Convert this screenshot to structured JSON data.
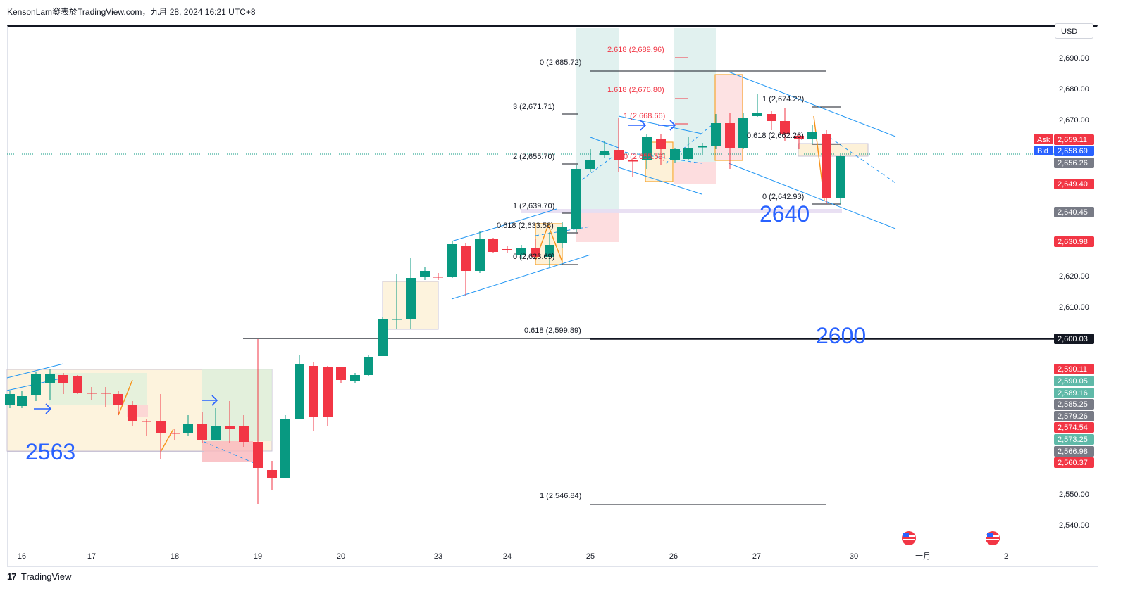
{
  "header": {
    "caption": "KensonLam發表於TradingView.com，九月 28, 2024 16:21 UTC+8"
  },
  "currency": "USD",
  "footer": {
    "logo_text": "TradingView"
  },
  "price_axis": {
    "ticks": [
      "2,690.00",
      "2,680.00",
      "2,670.00",
      "2,620.00",
      "2,610.00",
      "2,550.00",
      "2,540.00"
    ],
    "labels": [
      {
        "text": "Ask",
        "kind": "tag",
        "color": "#f23645"
      },
      {
        "text": "2,659.11",
        "color": "#f23645"
      },
      {
        "text": "Bid",
        "kind": "tag",
        "color": "#2962ff"
      },
      {
        "text": "2,658.69",
        "color": "#2962ff"
      },
      {
        "text": "2,656.26",
        "color": "#787b86"
      },
      {
        "text": "2,649.40",
        "color": "#f23645"
      },
      {
        "text": "2,640.45",
        "color": "#787b86"
      },
      {
        "text": "2,630.98",
        "color": "#f23645"
      },
      {
        "text": "2,600.03",
        "color": "#131722"
      },
      {
        "text": "2,590.11",
        "color": "#f23645"
      },
      {
        "text": "2,590.05",
        "color": "#5fb9a8"
      },
      {
        "text": "2,589.16",
        "color": "#5fb9a8"
      },
      {
        "text": "2,585.25",
        "color": "#787b86"
      },
      {
        "text": "2,579.26",
        "color": "#787b86"
      },
      {
        "text": "2,574.54",
        "color": "#f23645"
      },
      {
        "text": "2,573.25",
        "color": "#5fb9a8"
      },
      {
        "text": "2,566.98",
        "color": "#787b86"
      },
      {
        "text": "2,560.37",
        "color": "#f23645"
      }
    ]
  },
  "time_axis": {
    "ticks": [
      "16",
      "17",
      "18",
      "19",
      "20",
      "23",
      "24",
      "25",
      "26",
      "27",
      "30",
      "十月",
      "2"
    ]
  },
  "annotations": {
    "fib_labels": [
      {
        "text": "2.618 (2,689.96)",
        "color": "#f23645"
      },
      {
        "text": "0 (2,685.72)",
        "color": "#131722"
      },
      {
        "text": "1.618 (2,676.80)",
        "color": "#f23645"
      },
      {
        "text": "3 (2,671.71)",
        "color": "#131722"
      },
      {
        "text": "1 (2,668.66)",
        "color": "#f23645"
      },
      {
        "text": "1 (2,674.22)",
        "color": "#131722"
      },
      {
        "text": "0.618 (2,662.26)",
        "color": "#131722"
      },
      {
        "text": "2 (2,655.70)",
        "color": "#131722"
      },
      {
        "text": "0 (2,655.59)",
        "color": "#f23645"
      },
      {
        "text": "0 (2,642.93)",
        "color": "#131722"
      },
      {
        "text": "1 (2,639.70)",
        "color": "#131722"
      },
      {
        "text": "0.618 (2,633.58)",
        "color": "#131722"
      },
      {
        "text": "0 (2,623.69)",
        "color": "#131722"
      },
      {
        "text": "0.618 (2,599.89)",
        "color": "#131722"
      },
      {
        "text": "1 (2,546.84)",
        "color": "#131722"
      }
    ],
    "big_labels": [
      "2640",
      "2600",
      "2563"
    ]
  },
  "colors": {
    "up": "#089981",
    "down": "#f23645",
    "channel": "#2196f3",
    "big_label": "#2962ff"
  }
}
